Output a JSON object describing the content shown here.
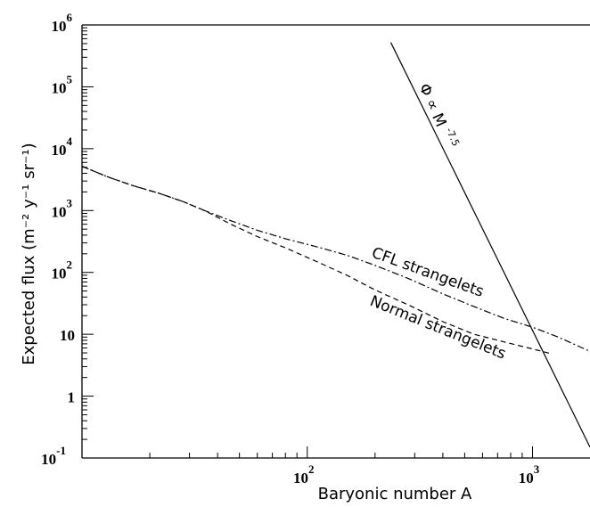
{
  "chart_data": {
    "type": "line",
    "xlabel": "Baryonic number A",
    "ylabel": "Expected flux (m⁻² y⁻¹ sr⁻¹)",
    "xscale": "log",
    "yscale": "log",
    "xlim": [
      10,
      1800
    ],
    "ylim": [
      0.1,
      1000000
    ],
    "grid": false,
    "x_tick_labels": [
      {
        "value": 100,
        "base": "10",
        "exp": "2"
      },
      {
        "value": 1000,
        "base": "10",
        "exp": "3"
      }
    ],
    "y_tick_labels": [
      {
        "value": 0.1,
        "base": "10",
        "exp": "-1"
      },
      {
        "value": 1,
        "base": "1",
        "exp": ""
      },
      {
        "value": 10,
        "base": "10",
        "exp": ""
      },
      {
        "value": 100,
        "base": "10",
        "exp": "2"
      },
      {
        "value": 1000,
        "base": "10",
        "exp": "3"
      },
      {
        "value": 10000,
        "base": "10",
        "exp": "4"
      },
      {
        "value": 100000,
        "base": "10",
        "exp": "5"
      },
      {
        "value": 1000000,
        "base": "10",
        "exp": "6"
      }
    ],
    "series": [
      {
        "name": "Normal strangelets",
        "style": "dashed",
        "x": [
          10,
          13,
          17,
          22,
          28,
          35,
          45,
          60,
          80,
          110,
          150,
          200,
          280,
          400,
          550,
          750,
          1000,
          1200
        ],
        "y": [
          5200,
          3500,
          2500,
          1900,
          1400,
          1000,
          620,
          380,
          250,
          150,
          90,
          52,
          30,
          16,
          10,
          7.5,
          5.8,
          4.9
        ]
      },
      {
        "name": "CFL strangelets",
        "style": "dashdot",
        "x": [
          10,
          13,
          17,
          22,
          28,
          35,
          45,
          60,
          80,
          110,
          150,
          200,
          280,
          400,
          550,
          750,
          1000,
          1300,
          1800
        ],
        "y": [
          5200,
          3500,
          2500,
          1900,
          1400,
          1000,
          700,
          480,
          350,
          260,
          190,
          130,
          80,
          45,
          28,
          18,
          13,
          9,
          5.3
        ]
      },
      {
        "name": "Φ ∝ M⁻⁷·⁵",
        "style": "solid",
        "x": [
          235,
          1800
        ],
        "y": [
          520000,
          0.15
        ]
      }
    ],
    "annotations": {
      "cfl": "CFL strangelets",
      "normal": "Normal strangelets",
      "powerlaw_base": "Φ ∝ M",
      "powerlaw_exp": "-7.5"
    }
  }
}
